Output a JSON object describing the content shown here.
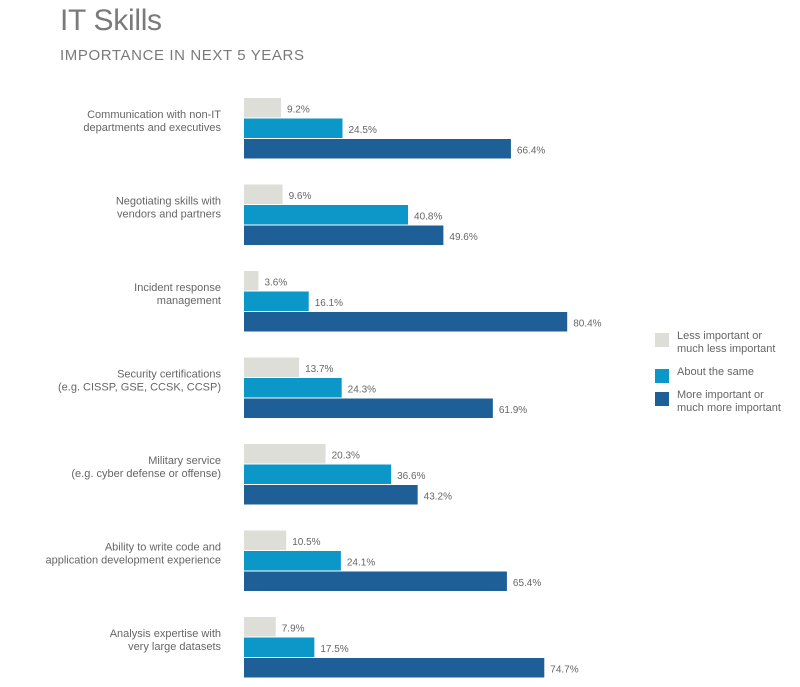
{
  "chart_data": {
    "type": "bar",
    "orientation": "horizontal",
    "title": "IT Skills",
    "subtitle": "IMPORTANCE IN NEXT 5 YEARS",
    "xlabel": "",
    "ylabel": "",
    "xlim": [
      0,
      100
    ],
    "grid": false,
    "legend_position": "right",
    "categories": [
      "Communication with non-IT\ndepartments and executives",
      "Negotiating skills with\nvendors and partners",
      "Incident response\nmanagement",
      "Security certifications\n(e.g. CISSP, GSE, CCSK, CCSP)",
      "Military service\n(e.g. cyber defense or offense)",
      "Ability to write code and\napplication development experience",
      "Analysis expertise with\nvery large datasets"
    ],
    "series": [
      {
        "name": "Less important or\nmuch less important",
        "color": "#deded9",
        "values": [
          9.2,
          9.6,
          3.6,
          13.7,
          20.3,
          10.5,
          7.9
        ],
        "labels": [
          "9.2%",
          "9.6%",
          "3.6%",
          "13.7%",
          "20.3%",
          "10.5%",
          "7.9%"
        ]
      },
      {
        "name": "About the same",
        "color": "#0c97c9",
        "values": [
          24.5,
          40.8,
          16.1,
          24.3,
          36.6,
          24.1,
          17.5
        ],
        "labels": [
          "24.5%",
          "40.8%",
          "16.1%",
          "24.3%",
          "36.6%",
          "24.1%",
          "17.5%"
        ]
      },
      {
        "name": "More important or\nmuch more important",
        "color": "#1d5f96",
        "values": [
          66.4,
          49.6,
          80.4,
          61.9,
          43.2,
          65.4,
          74.7
        ],
        "labels": [
          "66.4%",
          "49.6%",
          "80.4%",
          "61.9%",
          "43.2%",
          "65.4%",
          "74.7%"
        ]
      }
    ]
  }
}
